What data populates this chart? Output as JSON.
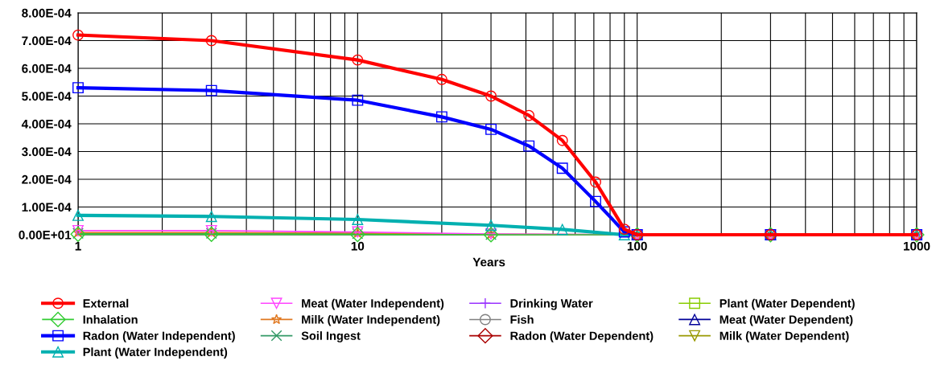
{
  "chart_data": {
    "type": "line",
    "xlabel": "Years",
    "log": "x",
    "grid": true,
    "legend": "bottom",
    "xlim": [
      1,
      1000
    ],
    "xticks": [
      1,
      {
        "value": 2,
        "label": null
      },
      {
        "value": 3,
        "label": null
      },
      {
        "value": 4,
        "label": null
      },
      {
        "value": 5,
        "label": null
      },
      {
        "value": 6,
        "label": null
      },
      {
        "value": 7,
        "label": null
      },
      {
        "value": 8,
        "label": null
      },
      {
        "value": 9,
        "label": null
      },
      10,
      {
        "value": 20,
        "label": null
      },
      {
        "value": 30,
        "label": null
      },
      {
        "value": 40,
        "label": null
      },
      {
        "value": 50,
        "label": null
      },
      {
        "value": 60,
        "label": null
      },
      {
        "value": 70,
        "label": null
      },
      {
        "value": 80,
        "label": null
      },
      {
        "value": 90,
        "label": null
      },
      100,
      {
        "value": 200,
        "label": null
      },
      {
        "value": 300,
        "label": null
      },
      {
        "value": 400,
        "label": null
      },
      {
        "value": 500,
        "label": null
      },
      {
        "value": 600,
        "label": null
      },
      {
        "value": 700,
        "label": null
      },
      {
        "value": 800,
        "label": null
      },
      {
        "value": 900,
        "label": null
      },
      1000
    ],
    "ylim": [
      0,
      0.0008
    ],
    "yticks": [
      {
        "value": 0,
        "label": "0.00E+01"
      },
      {
        "value": 0.0001,
        "label": "1.00E-04"
      },
      {
        "value": 0.0002,
        "label": "2.00E-04"
      },
      {
        "value": 0.0003,
        "label": "3.00E-04"
      },
      {
        "value": 0.0004,
        "label": "4.00E-04"
      },
      {
        "value": 0.0005,
        "label": "5.00E-04"
      },
      {
        "value": 0.0006,
        "label": "6.00E-04"
      },
      {
        "value": 0.0007,
        "label": "7.00E-04"
      },
      {
        "value": 0.0008,
        "label": "8.00E-04"
      }
    ],
    "series": [
      {
        "name": "External",
        "color": "#ff0000",
        "marker": "circle",
        "x": [
          1,
          3,
          10,
          20,
          30,
          41,
          54,
          71,
          90,
          100,
          300,
          1000
        ],
        "values": [
          0.00072,
          0.0007,
          0.00063,
          0.00056,
          0.0005,
          0.00043,
          0.00034,
          0.00019,
          2e-05,
          0,
          0,
          0
        ]
      },
      {
        "name": "Inhalation",
        "color": "#33cc33",
        "marker": "diamond",
        "x": [
          1,
          3,
          10,
          30,
          100,
          300,
          1000
        ],
        "values": [
          2e-06,
          2e-06,
          1e-06,
          0,
          0,
          0,
          0
        ]
      },
      {
        "name": "Radon (Water Independent)",
        "color": "#0000ff",
        "marker": "square",
        "x": [
          1,
          3,
          10,
          20,
          30,
          41,
          54,
          71,
          90,
          100,
          300,
          1000
        ],
        "values": [
          0.00053,
          0.00052,
          0.000485,
          0.000425,
          0.00038,
          0.00032,
          0.00024,
          0.00012,
          1e-05,
          0,
          0,
          0
        ]
      },
      {
        "name": "Plant (Water Independent)",
        "color": "#00b0b0",
        "marker": "triangle",
        "x": [
          1,
          3,
          10,
          30,
          54,
          90,
          100,
          300,
          1000
        ],
        "values": [
          7e-05,
          6.6e-05,
          5.5e-05,
          3.4e-05,
          1.9e-05,
          0,
          0,
          0,
          0
        ]
      },
      {
        "name": "Meat (Water Independent)",
        "color": "#ff44ff",
        "marker": "triangle_down",
        "x": [
          1,
          3,
          10,
          30,
          100,
          300,
          1000
        ],
        "values": [
          1.5e-05,
          1.5e-05,
          1e-05,
          3e-06,
          0,
          0,
          0
        ]
      },
      {
        "name": "Milk (Water Independent)",
        "color": "#e07820",
        "marker": "star",
        "x": [
          1,
          3,
          10,
          30,
          100,
          300,
          1000
        ],
        "values": [
          8e-06,
          8e-06,
          6e-06,
          2e-06,
          0,
          0,
          0
        ]
      },
      {
        "name": "Soil Ingest",
        "color": "#339966",
        "marker": "cross",
        "x": [
          1,
          3,
          10,
          30,
          100,
          300,
          1000
        ],
        "values": [
          5e-06,
          5e-06,
          4e-06,
          1e-06,
          0,
          0,
          0
        ]
      },
      {
        "name": "Drinking Water",
        "color": "#9933ff",
        "marker": "plus"
      },
      {
        "name": "Fish",
        "color": "#808080",
        "marker": "circle"
      },
      {
        "name": "Radon (Water Dependent)",
        "color": "#aa0000",
        "marker": "diamond"
      },
      {
        "name": "Plant (Water Dependent)",
        "color": "#88cc00",
        "marker": "square"
      },
      {
        "name": "Meat (Water Dependent)",
        "color": "#000099",
        "marker": "triangle"
      },
      {
        "name": "Milk (Water Dependent)",
        "color": "#999900",
        "marker": "triangle_down"
      }
    ]
  }
}
